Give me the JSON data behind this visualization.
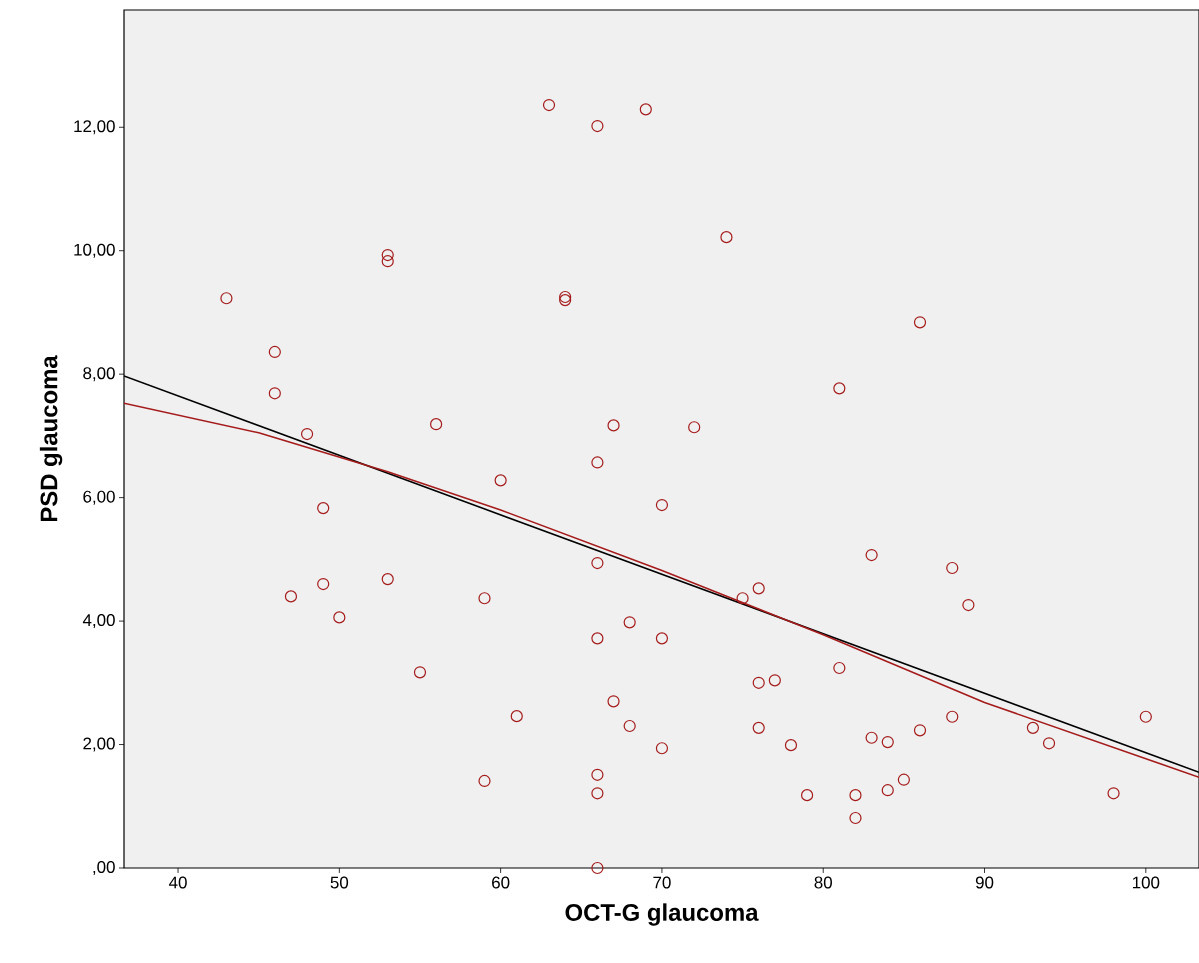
{
  "chart_data": {
    "type": "scatter",
    "xlabel": "OCT-G glaucoma",
    "ylabel": "PSD glaucoma",
    "xlim": [
      36.65,
      103.3
    ],
    "ylim": [
      0,
      13.9
    ],
    "xticks": [
      40,
      50,
      60,
      70,
      80,
      90,
      100
    ],
    "yticks": [
      {
        "value": 0,
        "label": ",00"
      },
      {
        "value": 2,
        "label": "2,00"
      },
      {
        "value": 4,
        "label": "4,00"
      },
      {
        "value": 6,
        "label": "6,00"
      },
      {
        "value": 8,
        "label": "8,00"
      },
      {
        "value": 10,
        "label": "10,00"
      },
      {
        "value": 12,
        "label": "12,00"
      }
    ],
    "grid": false,
    "series": [
      {
        "color": "#a51b1b",
        "marker": "circle",
        "x": [
          43,
          46,
          46,
          48,
          49,
          49,
          47,
          50,
          53,
          53,
          53,
          55,
          56,
          59,
          59,
          60,
          61,
          63,
          64,
          64,
          66,
          66,
          66,
          66,
          66,
          66,
          66,
          67,
          67,
          68,
          68,
          69,
          70,
          70,
          70,
          72,
          74,
          75,
          76,
          76,
          76,
          77,
          78,
          79,
          81,
          81,
          82,
          82,
          83,
          83,
          84,
          84,
          85,
          86,
          86,
          88,
          88,
          89,
          93,
          94,
          98,
          100
        ],
        "values": [
          9.23,
          8.36,
          7.69,
          7.03,
          5.83,
          4.6,
          4.4,
          4.06,
          9.93,
          9.83,
          4.68,
          3.17,
          7.19,
          4.37,
          1.41,
          6.28,
          2.46,
          12.36,
          9.25,
          9.2,
          12.02,
          6.57,
          4.94,
          3.72,
          1.51,
          1.21,
          0,
          7.17,
          2.7,
          3.98,
          2.3,
          12.29,
          5.88,
          3.72,
          1.94,
          7.14,
          10.22,
          4.37,
          4.53,
          3.0,
          2.27,
          3.04,
          1.99,
          1.18,
          7.77,
          3.24,
          1.18,
          0.81,
          5.07,
          2.11,
          2.04,
          1.26,
          1.43,
          8.84,
          2.23,
          4.86,
          2.45,
          4.26,
          2.27,
          2.02,
          1.21,
          2.45
        ]
      },
      {
        "type": "line",
        "color": "#000000",
        "marker": "none",
        "x": [
          36.65,
          103.3
        ],
        "values": [
          7.97,
          1.55
        ]
      },
      {
        "type": "line",
        "color": "#a51b1b",
        "marker": "none",
        "x": [
          36.65,
          45,
          53,
          60,
          70,
          80,
          90,
          103.3
        ],
        "values": [
          7.53,
          7.05,
          6.42,
          5.8,
          4.82,
          3.78,
          2.68,
          1.47
        ]
      }
    ]
  }
}
